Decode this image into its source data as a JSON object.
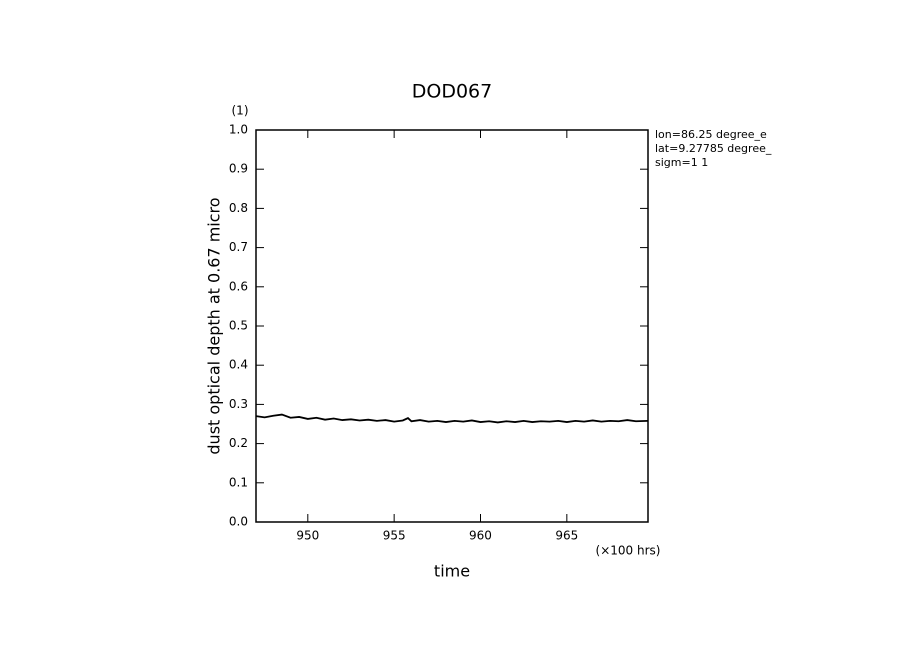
{
  "chart_data": {
    "type": "line",
    "title": "DOD067",
    "x_label": "time",
    "y_label": "dust optical depth at 0.67 micro",
    "y_unit": "(1)",
    "x_unit": "(×100 hrs)",
    "annotations": [
      "lon=86.25 degree_e",
      "lat=9.27785 degree_",
      "sigm=1 1"
    ],
    "x": [
      947,
      947.5,
      948,
      948.5,
      949,
      949.5,
      950,
      950.5,
      951,
      951.5,
      952,
      952.5,
      953,
      953.5,
      954,
      954.5,
      955,
      955.5,
      955.8,
      956,
      956.5,
      957,
      957.5,
      958,
      958.5,
      959,
      959.5,
      960,
      960.5,
      961,
      961.5,
      962,
      962.5,
      963,
      963.5,
      964,
      964.5,
      965,
      965.5,
      966,
      966.5,
      967,
      967.5,
      968,
      968.5,
      969,
      969.7
    ],
    "series": [
      {
        "name": "dust optical depth",
        "color": "#000000",
        "values": [
          0.27,
          0.267,
          0.271,
          0.274,
          0.266,
          0.268,
          0.263,
          0.266,
          0.261,
          0.264,
          0.26,
          0.262,
          0.259,
          0.261,
          0.258,
          0.26,
          0.256,
          0.259,
          0.265,
          0.257,
          0.26,
          0.256,
          0.258,
          0.255,
          0.258,
          0.256,
          0.259,
          0.255,
          0.257,
          0.254,
          0.257,
          0.255,
          0.258,
          0.255,
          0.257,
          0.256,
          0.258,
          0.255,
          0.258,
          0.256,
          0.259,
          0.256,
          0.258,
          0.257,
          0.26,
          0.257,
          0.258
        ]
      }
    ],
    "xlim": [
      947,
      969.7
    ],
    "ylim": [
      0,
      1
    ],
    "xticks": [
      950,
      955,
      960,
      965
    ],
    "yticks": [
      {
        "value": 0,
        "label": "0.0"
      },
      0.1,
      0.2,
      0.3,
      0.4,
      0.5,
      0.6,
      0.7,
      0.8,
      0.9,
      {
        "value": 1,
        "label": "1.0"
      }
    ]
  }
}
